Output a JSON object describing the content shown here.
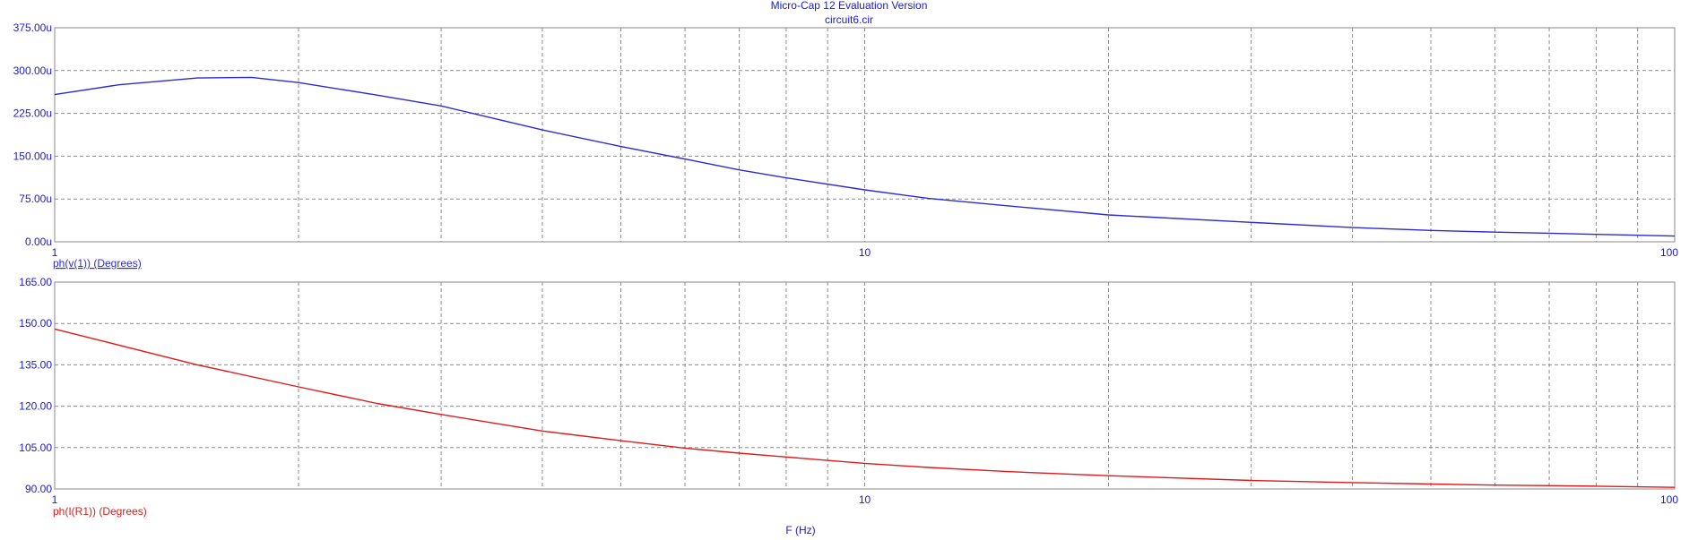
{
  "header": {
    "title": "Micro-Cap 12 Evaluation Version",
    "subtitle": "circuit6.cir"
  },
  "x_label": "F (Hz)",
  "colors": {
    "frame": "#8a8a8a",
    "grid": "#8a8a8a",
    "title": "#1a1acc",
    "series_top": "#2b2bd6",
    "series_bottom": "#e01a1a"
  },
  "chart_data": [
    {
      "type": "line",
      "x_scale": "log",
      "xlim": [
        1,
        100
      ],
      "x_tick_labels": [
        "1",
        "10",
        "100"
      ],
      "ylim": [
        0,
        375
      ],
      "y_tick_labels": [
        "0.00u",
        "75.00u",
        "150.00u",
        "225.00u",
        "300.00u",
        "375.00u"
      ],
      "ylabel": "ph(v(1)) (Degrees)",
      "grid": true,
      "series": [
        {
          "name": "ph(v(1)) (Degrees)",
          "color": "#2b2bd6",
          "x": [
            1,
            1.2,
            1.5,
            1.75,
            2,
            2.5,
            3,
            4,
            5,
            6,
            7,
            8,
            10,
            12,
            15,
            20,
            30,
            40,
            50,
            60,
            70,
            80,
            100
          ],
          "y": [
            258,
            275,
            287,
            288,
            279,
            257,
            238,
            196,
            167,
            145,
            126,
            112,
            91,
            76,
            63,
            47,
            34,
            25,
            20,
            17,
            15,
            13,
            10
          ]
        }
      ]
    },
    {
      "type": "line",
      "x_scale": "log",
      "xlim": [
        1,
        100
      ],
      "x_tick_labels": [
        "1",
        "10",
        "100"
      ],
      "ylim": [
        90,
        165
      ],
      "y_tick_labels": [
        "90.00",
        "105.00",
        "120.00",
        "135.00",
        "150.00",
        "165.00"
      ],
      "ylabel": "ph(I(R1)) (Degrees)",
      "xlabel": "F (Hz)",
      "grid": true,
      "series": [
        {
          "name": "ph(I(R1)) (Degrees)",
          "color": "#e01a1a",
          "x": [
            1,
            1.5,
            2,
            2.5,
            3,
            4,
            5,
            6,
            7,
            8,
            10,
            12,
            15,
            20,
            30,
            40,
            50,
            60,
            70,
            80,
            100
          ],
          "y": [
            148,
            135,
            127,
            121,
            117,
            111,
            107.5,
            104.8,
            103,
            101.6,
            99.3,
            97.8,
            96.3,
            94.8,
            93.1,
            92.3,
            91.8,
            91.4,
            91.2,
            91,
            90.6
          ]
        }
      ]
    }
  ]
}
